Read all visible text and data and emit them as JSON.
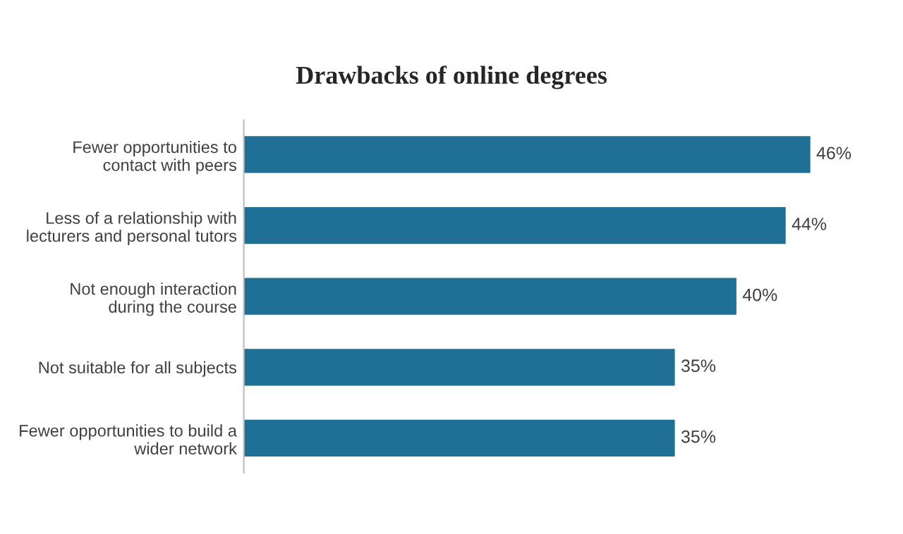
{
  "chart_data": {
    "type": "bar",
    "orientation": "horizontal",
    "title": "Drawbacks of online degrees",
    "categories": [
      "Fewer opportunities to\ncontact with peers",
      "Less of a relationship with\nlecturers and personal tutors",
      "Not enough interaction\nduring the course",
      "Not suitable for all subjects",
      "Fewer opportunities to build a\nwider network"
    ],
    "values": [
      46,
      44,
      40,
      35,
      35
    ],
    "value_labels": [
      "46%",
      "44%",
      "40%",
      "35%",
      "35%"
    ],
    "color": "#1f6f97",
    "tick_labels": "y"
  }
}
